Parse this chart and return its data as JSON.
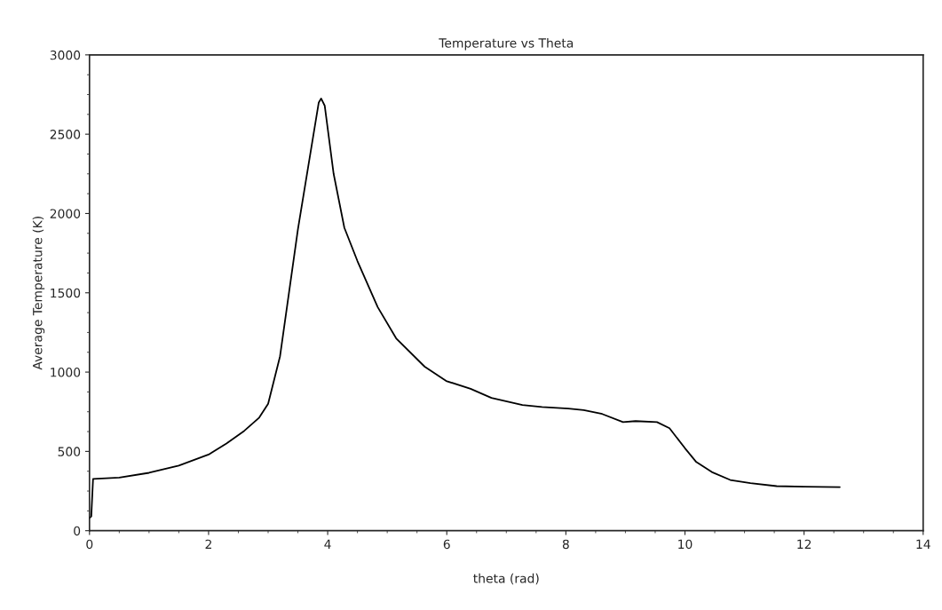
{
  "chart_data": {
    "type": "line",
    "title": "Temperature vs Theta",
    "xlabel": "theta (rad)",
    "ylabel": "Average Temperature (K)",
    "xlim": [
      0,
      14
    ],
    "xticks": [
      0,
      2,
      4,
      6,
      8,
      10,
      12,
      14
    ],
    "ylim": [
      0,
      3000
    ],
    "yticks": [
      0,
      500,
      1000,
      1500,
      2000,
      2500,
      3000
    ],
    "grid": false,
    "legend": false,
    "series": [
      {
        "color": "#000000",
        "x": [
          0,
          0.03,
          0.06,
          0.5,
          1,
          1.5,
          2,
          2.3,
          2.6,
          2.85,
          3.0,
          3.2,
          3.5,
          3.85,
          3.89,
          3.95,
          4.1,
          4.28,
          4.5,
          4.84,
          5.15,
          5.63,
          5.99,
          6.4,
          6.75,
          7.27,
          7.6,
          8.04,
          8.3,
          8.61,
          8.96,
          9.17,
          9.53,
          9.74,
          10.0,
          10.19,
          10.45,
          10.76,
          11.1,
          11.54,
          12.0,
          12.6
        ],
        "values": [
          80,
          90,
          326,
          335,
          365,
          410,
          480,
          550,
          630,
          713,
          800,
          1100,
          1900,
          2700,
          2725,
          2680,
          2250,
          1910,
          1700,
          1410,
          1213,
          1034,
          944,
          895,
          837,
          792,
          780,
          770,
          760,
          736,
          685,
          691,
          685,
          646,
          520,
          433,
          370,
          320,
          300,
          281,
          278,
          275
        ]
      }
    ]
  }
}
